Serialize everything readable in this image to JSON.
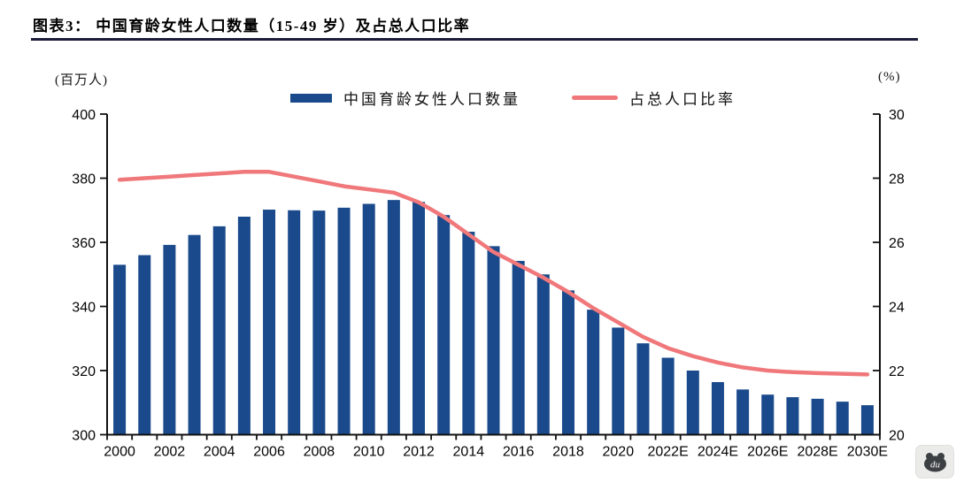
{
  "figure": {
    "title": "图表3：  中国育龄女性人口数量（15-49 岁）及占总人口比率",
    "watermark_text": "du"
  },
  "colors": {
    "bar": "#1A4A8C",
    "line": "#F0787B",
    "axis": "#111111",
    "text": "#050505",
    "title_rule": "#1C1C38",
    "badge_bg": "#EBEBE9",
    "badge_bear": "#3C4043"
  },
  "chart_data": {
    "type": "combo-bar-line",
    "title": "图表3：  中国育龄女性人口数量（15-49 岁）及占总人口比率",
    "x": [
      "2000",
      "2001",
      "2002",
      "2003",
      "2004",
      "2005",
      "2006",
      "2007",
      "2008",
      "2009",
      "2010",
      "2011",
      "2012",
      "2013",
      "2014",
      "2015",
      "2016",
      "2017",
      "2018",
      "2019",
      "2020",
      "2021",
      "2022",
      "2023",
      "2024",
      "2025",
      "2026",
      "2027",
      "2028",
      "2029",
      "2030"
    ],
    "x_tick_labels": [
      "2000",
      "2002",
      "2004",
      "2006",
      "2008",
      "2010",
      "2012",
      "2014",
      "2016",
      "2018",
      "2020",
      "2022E",
      "2024E",
      "2026E",
      "2028E",
      "2030E"
    ],
    "left_axis": {
      "unit": "(百万人)",
      "min": 300,
      "max": 400,
      "ticks": [
        300,
        320,
        340,
        360,
        380,
        400
      ]
    },
    "right_axis": {
      "unit": "(%)",
      "min": 20,
      "max": 30,
      "ticks": [
        20,
        22,
        24,
        26,
        28,
        30
      ]
    },
    "grid": false,
    "legend_position": "top-center",
    "series": [
      {
        "name": "中国育龄女性人口数量",
        "type": "bar",
        "axis": "left",
        "color": "#1A4A8C",
        "values": [
          353,
          356,
          359.2,
          362.3,
          365,
          368,
          370.2,
          370,
          369.9,
          370.8,
          372,
          373.2,
          372.6,
          368.5,
          363.3,
          358.8,
          354.2,
          350,
          345,
          339,
          333.4,
          328.5,
          324,
          320,
          316.4,
          314.1,
          312.5,
          311.7,
          311.2,
          310.3,
          309.2
        ]
      },
      {
        "name": "占总人口比率",
        "type": "line",
        "axis": "right",
        "color": "#F0787B",
        "values": [
          27.95,
          28.0,
          28.05,
          28.1,
          28.15,
          28.2,
          28.2,
          28.05,
          27.9,
          27.75,
          27.65,
          27.55,
          27.25,
          26.8,
          26.25,
          25.7,
          25.3,
          24.9,
          24.45,
          23.95,
          23.5,
          23.05,
          22.7,
          22.45,
          22.25,
          22.1,
          22.0,
          21.95,
          21.92,
          21.9,
          21.88
        ]
      }
    ]
  }
}
